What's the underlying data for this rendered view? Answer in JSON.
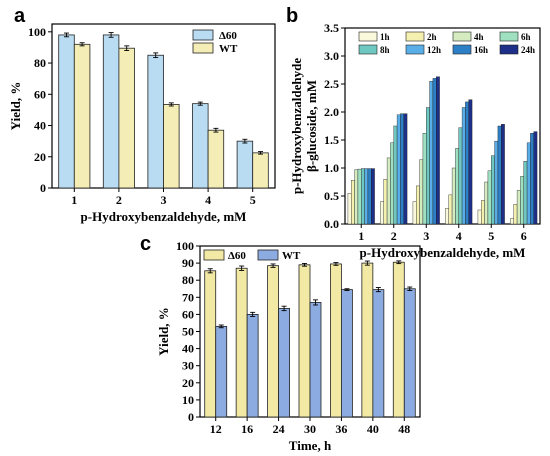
{
  "chart_data": [
    {
      "panel": "a",
      "type": "bar",
      "title": "",
      "xlabel": "p-Hydroxybenzaldehyde, mM",
      "ylabel": "Yield, %",
      "ylim": [
        0,
        105
      ],
      "yticks": [
        0,
        20,
        40,
        60,
        80,
        100
      ],
      "categories": [
        "1",
        "2",
        "3",
        "4",
        "5"
      ],
      "legend_position": "top-right",
      "series": [
        {
          "name": "Δ60",
          "color": "#b9dcf3",
          "values": [
            98,
            98,
            85,
            54,
            30
          ],
          "errors": [
            1.2,
            1.5,
            1.5,
            1.0,
            1.2
          ]
        },
        {
          "name": "WT",
          "color": "#f4eeb6",
          "values": [
            92,
            89.5,
            53.5,
            37,
            22.5
          ],
          "errors": [
            1.0,
            1.5,
            1.0,
            1.2,
            0.8
          ]
        }
      ]
    },
    {
      "panel": "b",
      "type": "bar",
      "title": "",
      "xlabel": "p-Hydroxybenzaldehyde, mM",
      "ylabel_lines": [
        "p-Hydroxybenzaldehyde",
        "β-glucoside, mM"
      ],
      "ylim": [
        0,
        3.5
      ],
      "yticks": [
        "0.0",
        "0.5",
        "1.0",
        "1.5",
        "2.0",
        "2.5",
        "3.0",
        "3.5"
      ],
      "categories": [
        "1",
        "2",
        "3",
        "4",
        "5",
        "6"
      ],
      "legend_position": "top",
      "series": [
        {
          "name": "1h",
          "color": "#fbf9dc",
          "values": [
            0.55,
            0.4,
            0.4,
            0.28,
            0.25,
            0.1
          ]
        },
        {
          "name": "2h",
          "color": "#f4f0b0",
          "values": [
            0.78,
            0.8,
            0.68,
            0.52,
            0.42,
            0.35
          ]
        },
        {
          "name": "4h",
          "color": "#d4ecc0",
          "values": [
            0.97,
            1.18,
            1.15,
            1.0,
            0.75,
            0.6
          ]
        },
        {
          "name": "6h",
          "color": "#9fe0c0",
          "values": [
            0.98,
            1.45,
            1.62,
            1.35,
            0.95,
            0.85
          ]
        },
        {
          "name": "8h",
          "color": "#6ec7c0",
          "values": [
            0.99,
            1.75,
            2.08,
            1.72,
            1.22,
            1.12
          ]
        },
        {
          "name": "12h",
          "color": "#5aaee8",
          "values": [
            0.99,
            1.95,
            2.55,
            2.08,
            1.48,
            1.45
          ]
        },
        {
          "name": "16h",
          "color": "#2d7fc6",
          "values": [
            0.99,
            1.97,
            2.6,
            2.18,
            1.75,
            1.62
          ]
        },
        {
          "name": "24h",
          "color": "#1d2f86",
          "values": [
            0.99,
            1.97,
            2.63,
            2.22,
            1.78,
            1.65
          ]
        }
      ]
    },
    {
      "panel": "c",
      "type": "bar",
      "title": "",
      "xlabel": "Time, h",
      "ylabel": "Yield, %",
      "ylim": [
        0,
        100
      ],
      "yticks": [
        0,
        10,
        20,
        30,
        40,
        50,
        60,
        70,
        80,
        90,
        100
      ],
      "categories": [
        "12",
        "16",
        "24",
        "30",
        "36",
        "40",
        "48"
      ],
      "legend_position": "top-left",
      "series": [
        {
          "name": "Δ60",
          "color": "#f2e9a4",
          "values": [
            85.5,
            87,
            88.5,
            89,
            89.5,
            90,
            90.5
          ],
          "errors": [
            1.2,
            1.3,
            1.0,
            0.8,
            0.8,
            1.2,
            0.8
          ]
        },
        {
          "name": "WT",
          "color": "#8cabe0",
          "values": [
            53,
            60,
            63.5,
            67,
            74.5,
            74.5,
            75
          ],
          "errors": [
            0.8,
            1.2,
            1.3,
            1.5,
            0.5,
            1.2,
            1.0
          ]
        }
      ]
    }
  ],
  "panel_labels": [
    "a",
    "b",
    "c"
  ]
}
